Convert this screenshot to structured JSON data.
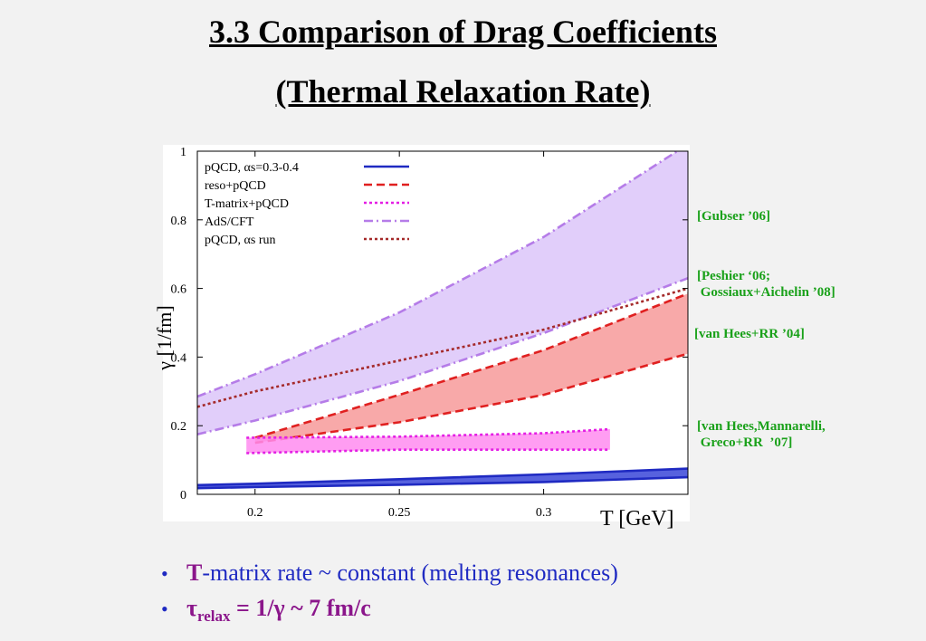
{
  "slide": {
    "title_line1": "3.3 Comparison of Drag Coefficients",
    "title_line2": "(Thermal Relaxation Rate)"
  },
  "references": {
    "gubser": "[Gubser ’06]",
    "peshier": "[Peshier ‘06;\n Gossiaux+Aichelin ’08]",
    "vanhees04": "[van Hees+RR ’04]",
    "vanhees07": "[van Hees,Mannarelli,\n Greco+RR  ’07]"
  },
  "bullets": {
    "b1_prefix": "T",
    "b1_rest": "-matrix rate ~ constant  (melting resonances)",
    "b2_tau": "τ",
    "b2_sub": "relax",
    "b2_rest": " = 1/γ ~ 7 fm/c"
  },
  "chart_data": {
    "type": "line",
    "xlabel": "T [GeV]",
    "ylabel": "γ [1/fm]",
    "xlim": [
      0.18,
      0.35
    ],
    "ylim": [
      0,
      1
    ],
    "x_ticks": [
      0.2,
      0.25,
      0.3
    ],
    "y_ticks": [
      0,
      0.2,
      0.4,
      0.6,
      0.8,
      1
    ],
    "x_tick_labels": [
      "0.2",
      "0.25",
      "0.3"
    ],
    "y_tick_labels": [
      "0",
      "0.2",
      "0.4",
      "0.6",
      "0.8",
      "1"
    ],
    "legend_position": "top-left",
    "grid": false,
    "series": [
      {
        "name": "pQCD, αs=0.3-0.4",
        "color": "#1f2ac2",
        "style": "solid",
        "fill": "#3a46d8",
        "band": {
          "x": [
            0.18,
            0.2,
            0.25,
            0.3,
            0.35
          ],
          "lower": [
            0.018,
            0.021,
            0.028,
            0.036,
            0.05
          ],
          "upper": [
            0.027,
            0.031,
            0.044,
            0.058,
            0.075
          ]
        }
      },
      {
        "name": "reso+pQCD",
        "color": "#e02020",
        "style": "dashed",
        "fill": "#f79a9a",
        "band": {
          "x": [
            0.2,
            0.25,
            0.3,
            0.35
          ],
          "lower": [
            0.15,
            0.21,
            0.29,
            0.41
          ],
          "upper": [
            0.165,
            0.29,
            0.42,
            0.585
          ]
        }
      },
      {
        "name": "T-matrix+pQCD",
        "color": "#e41fe4",
        "style": "dotted",
        "fill": "#ff8cf0",
        "band": {
          "x": [
            0.197,
            0.25,
            0.3,
            0.323
          ],
          "lower": [
            0.12,
            0.13,
            0.13,
            0.13
          ],
          "upper": [
            0.165,
            0.168,
            0.178,
            0.19
          ]
        }
      },
      {
        "name": "AdS/CFT",
        "color": "#b57ce8",
        "style": "dashdot",
        "fill": "#dcc6f9",
        "band": {
          "x": [
            0.18,
            0.2,
            0.25,
            0.3,
            0.35
          ],
          "lower": [
            0.175,
            0.215,
            0.33,
            0.47,
            0.63
          ],
          "upper": [
            0.285,
            0.35,
            0.53,
            0.75,
            1.02
          ]
        }
      },
      {
        "name": "pQCD, αs run",
        "color": "#a52a2a",
        "style": "dotted",
        "x": [
          0.18,
          0.2,
          0.25,
          0.3,
          0.35
        ],
        "y": [
          0.255,
          0.3,
          0.39,
          0.48,
          0.6
        ]
      }
    ]
  }
}
